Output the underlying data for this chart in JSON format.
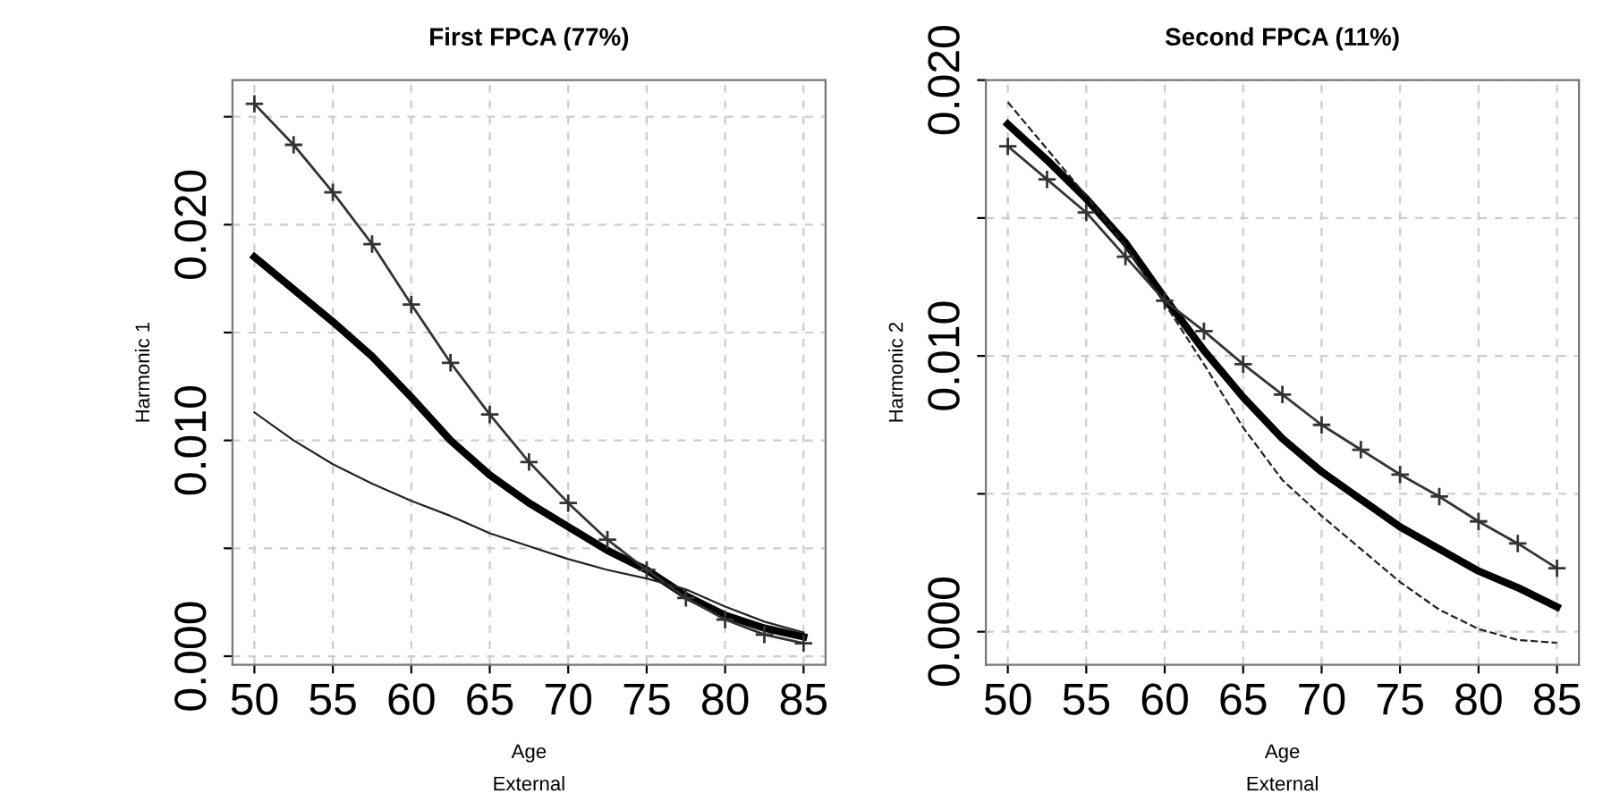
{
  "chart_data": [
    {
      "type": "line",
      "title": "First FPCA (77%)",
      "xlabel": "Age",
      "ylabel": "Harmonic 1",
      "annotations": [
        "External"
      ],
      "x": [
        50,
        52.5,
        55,
        57.5,
        60,
        62.5,
        65,
        67.5,
        70,
        72.5,
        75,
        77.5,
        80,
        82.5,
        85
      ],
      "xlim": [
        48.6,
        86.4
      ],
      "xticks": [
        50,
        55,
        60,
        65,
        70,
        75,
        80,
        85
      ],
      "ylim": [
        -0.0004,
        0.0267
      ],
      "yticks": [
        {
          "value": 0,
          "label": "0.000"
        },
        {
          "value": 0.005,
          "label": null
        },
        {
          "value": 0.01,
          "label": "0.010"
        },
        {
          "value": 0.015,
          "label": null
        },
        {
          "value": 0.02,
          "label": "0.020"
        },
        {
          "value": 0.025,
          "label": null
        }
      ],
      "grid": true,
      "series": [
        {
          "color": "#000000",
          "marker": "none",
          "line_style": "solid",
          "values": [
            0.0185,
            0.017,
            0.0155,
            0.0139,
            0.012,
            0.01,
            0.0084,
            0.0071,
            0.006,
            0.0049,
            0.004,
            0.0028,
            0.0019,
            0.0013,
            0.0009
          ]
        },
        {
          "color": "#333333",
          "marker": "cross",
          "line_style": "solid",
          "values": [
            0.0256,
            0.0237,
            0.0215,
            0.0191,
            0.0163,
            0.0136,
            0.0112,
            0.009,
            0.0071,
            0.0054,
            0.004,
            0.0027,
            0.0017,
            0.001,
            0.0006
          ]
        },
        {
          "color": "#222222",
          "marker": "none",
          "line_style": "solid",
          "values": [
            0.0113,
            0.01,
            0.0089,
            0.008,
            0.0072,
            0.0065,
            0.0057,
            0.0051,
            0.0045,
            0.004,
            0.0036,
            0.0031,
            0.0023,
            0.0016,
            0.0011
          ]
        }
      ]
    },
    {
      "type": "line",
      "title": "Second FPCA (11%)",
      "xlabel": "Age",
      "ylabel": "Harmonic 2",
      "annotations": [
        "External"
      ],
      "x": [
        50,
        52.5,
        55,
        57.5,
        60,
        62.5,
        65,
        67.5,
        70,
        72.5,
        75,
        77.5,
        80,
        82.5,
        85
      ],
      "xlim": [
        48.6,
        86.4
      ],
      "xticks": [
        50,
        55,
        60,
        65,
        70,
        75,
        80,
        85
      ],
      "ylim": [
        -0.0012,
        0.02
      ],
      "yticks": [
        {
          "value": 0,
          "label": "0.000"
        },
        {
          "value": 0.005,
          "label": null
        },
        {
          "value": 0.01,
          "label": "0.010"
        },
        {
          "value": 0.015,
          "label": null
        },
        {
          "value": 0.02,
          "label": "0.020"
        }
      ],
      "grid": true,
      "series": [
        {
          "color": "#000000",
          "marker": "none",
          "line_style": "solid",
          "values": [
            0.0184,
            0.0171,
            0.0157,
            0.0141,
            0.0121,
            0.0102,
            0.0085,
            0.007,
            0.0058,
            0.0048,
            0.0038,
            0.003,
            0.0022,
            0.0016,
            0.0009
          ]
        },
        {
          "color": "#333333",
          "marker": "cross",
          "line_style": "solid",
          "values": [
            0.0176,
            0.0164,
            0.0152,
            0.0136,
            0.012,
            0.0109,
            0.0097,
            0.0086,
            0.0075,
            0.0066,
            0.0057,
            0.0049,
            0.004,
            0.0032,
            0.0023
          ]
        },
        {
          "color": "#222222",
          "marker": "none",
          "line_style": "dashed",
          "values": [
            0.0192,
            0.0175,
            0.0158,
            0.014,
            0.0119,
            0.0097,
            0.0074,
            0.0055,
            0.0042,
            0.003,
            0.0018,
            0.0008,
            0.0001,
            -0.0003,
            -0.0004
          ]
        }
      ]
    }
  ]
}
